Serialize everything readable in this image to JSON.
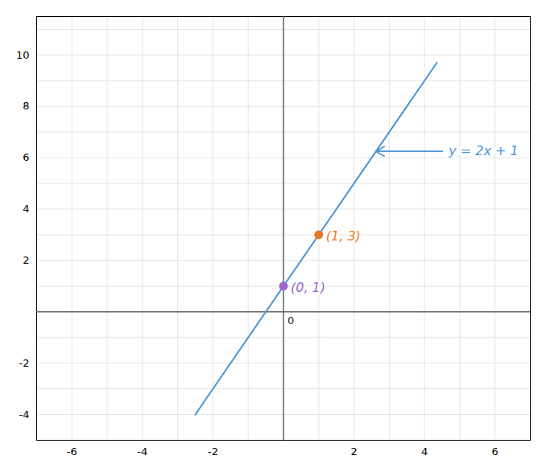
{
  "chart_data": {
    "type": "line",
    "xlim": [
      -7,
      7
    ],
    "ylim": [
      -5,
      11.5
    ],
    "xticks": [
      -6,
      -4,
      -2,
      2,
      4,
      6
    ],
    "yticks": [
      -4,
      -2,
      2,
      4,
      6,
      8,
      10
    ],
    "grid": true,
    "series": [
      {
        "type": "line",
        "color": "#4d94d4",
        "x": [
          -2.5,
          4.35
        ],
        "values": [
          -4,
          9.7
        ]
      },
      {
        "type": "scatter",
        "colors": [
          "#9966cc",
          "#e87722"
        ],
        "x": [
          0,
          1
        ],
        "values": [
          1,
          3
        ]
      }
    ],
    "annotations": [
      {
        "text": "0",
        "x": 0,
        "y": 0
      },
      {
        "text": "(0, 1)",
        "x": 0,
        "y": 1,
        "color": "#9966cc"
      },
      {
        "text": "(1, 3)",
        "x": 1,
        "y": 3,
        "color": "#e87722"
      },
      {
        "text": "y = 2x + 1",
        "x": 4.55,
        "y": 6.25,
        "arrow_to": [
          2.62,
          6.25
        ],
        "color": "#4d94d4"
      }
    ]
  }
}
